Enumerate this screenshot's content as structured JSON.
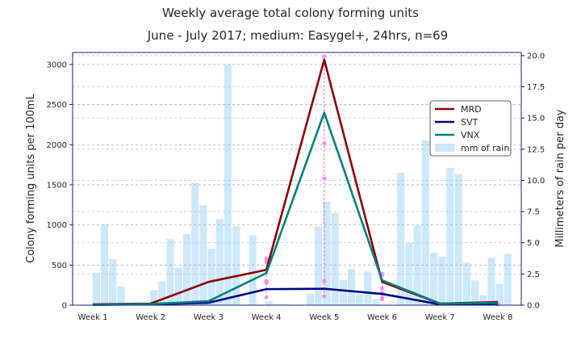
{
  "chart_data": {
    "type": "line",
    "title": "Weekly average total colony forming units",
    "subtitle": "June - July 2017; medium: Easygel+, 24hrs, n=69",
    "ylabel": "Colony forming units per 100mL",
    "y2label": "Millimeters of rain per day",
    "categories": [
      "Week 1",
      "Week 2",
      "Week 3",
      "Week 4",
      "Week 5",
      "Week 6",
      "Week 7",
      "Week 8"
    ],
    "ylim": [
      0,
      3150
    ],
    "y2lim": [
      0,
      20.25
    ],
    "yticks": [
      "0",
      "500",
      "1000",
      "1500",
      "2000",
      "2500",
      "3000"
    ],
    "y2ticks": [
      "0.0",
      "2.5",
      "5.0",
      "7.5",
      "10.0",
      "12.5",
      "15.0",
      "17.5",
      "20.0"
    ],
    "grid": true,
    "legend_position": "right",
    "series": [
      {
        "name": "MRD",
        "color": "#8b0000",
        "values": [
          10,
          20,
          290,
          440,
          3060,
          290,
          20,
          40
        ]
      },
      {
        "name": "SVT",
        "color": "#00008b",
        "values": [
          5,
          10,
          30,
          200,
          205,
          140,
          10,
          20
        ]
      },
      {
        "name": "VNX",
        "color": "#008080",
        "values": [
          5,
          15,
          50,
          400,
          2400,
          310,
          20,
          30
        ]
      }
    ],
    "rain": {
      "name": "mm of rain",
      "color": "#cce8fb",
      "values": [
        0,
        2.6,
        6.5,
        3.7,
        1.5,
        0,
        0,
        0,
        1.2,
        1.9,
        5.3,
        3.0,
        5.7,
        9.8,
        8.0,
        4.5,
        6.9,
        19.3,
        6.3,
        0,
        5.6,
        0,
        0.3,
        0.1,
        0.1,
        0,
        0,
        0.9,
        6.3,
        8.3,
        7.4,
        2.0,
        2.9,
        0.9,
        2.7,
        0.5,
        0,
        0,
        10.6,
        5.0,
        6.4,
        13.2,
        4.2,
        3.9,
        11.0,
        10.5,
        3.4,
        2.0,
        0.8,
        3.8,
        1.7,
        4.1,
        0
      ]
    },
    "samples": {
      "color": "#ee82ee",
      "points": [
        {
          "week": 4,
          "values": [
            580,
            540,
            300,
            280,
            100
          ]
        },
        {
          "week": 5,
          "values": [
            3100,
            3000,
            2020,
            1580,
            300,
            110
          ]
        },
        {
          "week": 6,
          "values": [
            390,
            380,
            210,
            150,
            90,
            75
          ]
        },
        {
          "week": 8,
          "values": [
            20,
            10
          ]
        }
      ]
    }
  }
}
